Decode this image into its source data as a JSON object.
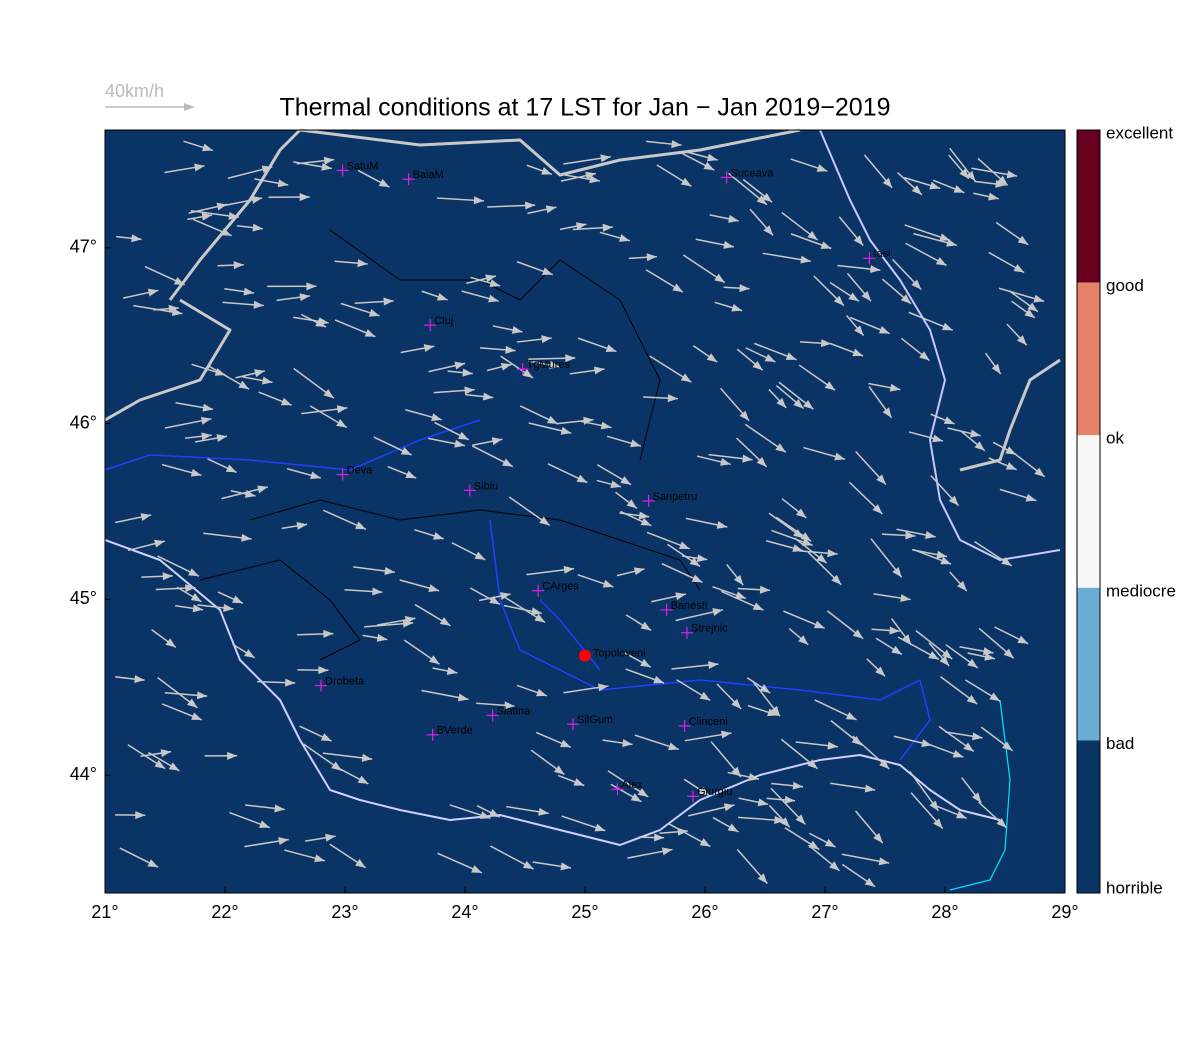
{
  "title": "Thermal conditions at 17 LST for Jan − Jan  2019−2019",
  "wind_scale": {
    "label": "40km/h"
  },
  "map": {
    "xlim": [
      21,
      29
    ],
    "ylim": [
      43.33,
      47.67
    ],
    "xticks": [
      {
        "value": 21,
        "label": "21°"
      },
      {
        "value": 22,
        "label": "22°"
      },
      {
        "value": 23,
        "label": "23°"
      },
      {
        "value": 24,
        "label": "24°"
      },
      {
        "value": 25,
        "label": "25°"
      },
      {
        "value": 26,
        "label": "26°"
      },
      {
        "value": 27,
        "label": "27°"
      },
      {
        "value": 28,
        "label": "28°"
      },
      {
        "value": 29,
        "label": "29°"
      }
    ],
    "yticks": [
      {
        "value": 44,
        "label": "44°"
      },
      {
        "value": 45,
        "label": "45°"
      },
      {
        "value": 46,
        "label": "46°"
      },
      {
        "value": 47,
        "label": "47°"
      }
    ],
    "background": "#0b3466",
    "cities": [
      {
        "name": "SatuM",
        "lon": 22.98,
        "lat": 47.44
      },
      {
        "name": "BaiaM",
        "lon": 23.53,
        "lat": 47.39
      },
      {
        "name": "Suceava",
        "lon": 26.18,
        "lat": 47.4
      },
      {
        "name": "Iasi",
        "lon": 27.37,
        "lat": 46.94
      },
      {
        "name": "Cluj",
        "lon": 23.71,
        "lat": 46.56
      },
      {
        "name": "TgMures",
        "lon": 24.48,
        "lat": 46.31
      },
      {
        "name": "Deva",
        "lon": 22.98,
        "lat": 45.71
      },
      {
        "name": "Sibiu",
        "lon": 24.04,
        "lat": 45.62
      },
      {
        "name": "Sanpetru",
        "lon": 25.53,
        "lat": 45.56
      },
      {
        "name": "CArges",
        "lon": 24.61,
        "lat": 45.05
      },
      {
        "name": "Banesti",
        "lon": 25.68,
        "lat": 44.94
      },
      {
        "name": "Strejnic",
        "lon": 25.85,
        "lat": 44.81
      },
      {
        "name": "Drobeta",
        "lon": 22.8,
        "lat": 44.51
      },
      {
        "name": "Slatina",
        "lon": 24.23,
        "lat": 44.34
      },
      {
        "name": "SilGum",
        "lon": 24.9,
        "lat": 44.29
      },
      {
        "name": "Clinceni",
        "lon": 25.83,
        "lat": 44.28
      },
      {
        "name": "BVerde",
        "lon": 23.73,
        "lat": 44.23
      },
      {
        "name": "Alex",
        "lon": 25.27,
        "lat": 43.92
      },
      {
        "name": "Giurgiu",
        "lon": 25.9,
        "lat": 43.88
      }
    ],
    "site": {
      "name": "Topoloveni",
      "lon": 25.0,
      "lat": 44.68,
      "color": "#ff0000"
    }
  },
  "colorbar": {
    "labels": [
      "excellent",
      "good",
      "ok",
      "mediocre",
      "bad",
      "horrible"
    ],
    "colors": [
      "#67001f",
      "#e58267",
      "#f7f7f7",
      "#6aaed6",
      "#0b3466"
    ]
  }
}
